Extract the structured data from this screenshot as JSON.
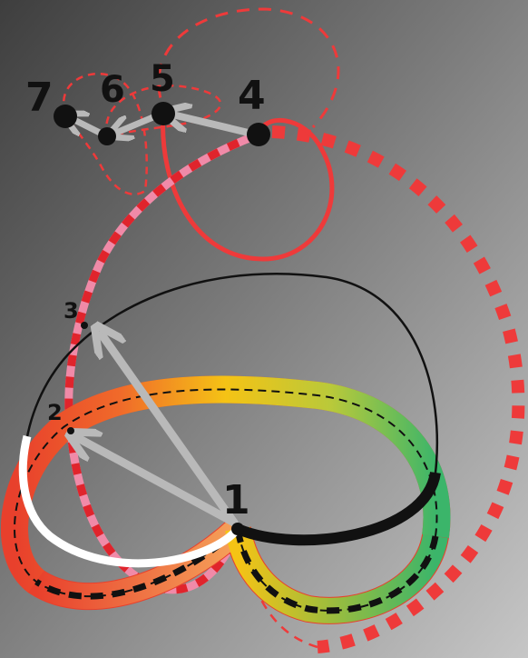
{
  "labels": {
    "n1": "1",
    "n2": "2",
    "n3": "3",
    "n4": "4",
    "n5": "5",
    "n6": "6",
    "n7": "7"
  },
  "colors": {
    "red": "#ee3a3a",
    "pink": "#f08aa8",
    "black": "#111111",
    "white": "#ffffff",
    "grey_arrow": "#b9b9b9",
    "band_red": "#e8402c",
    "band_orange": "#f08a24",
    "band_yellow": "#f5c315",
    "band_green": "#45b65a"
  }
}
